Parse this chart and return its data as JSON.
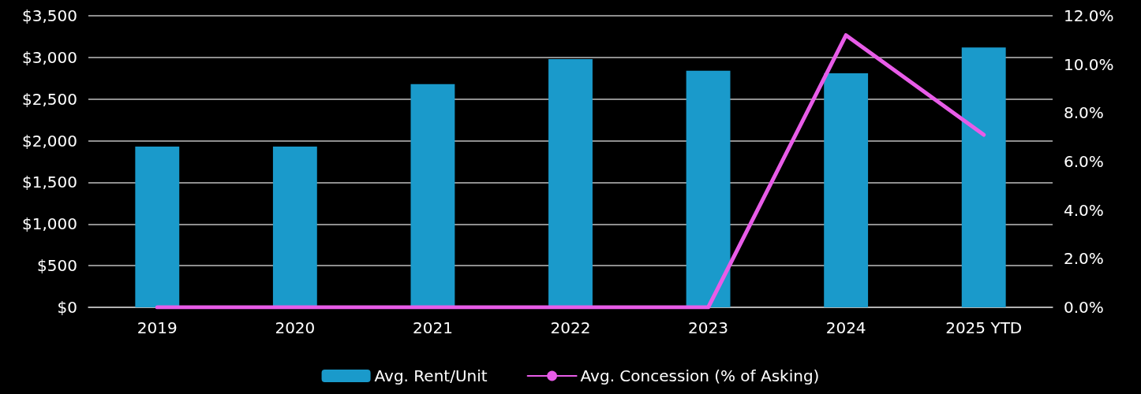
{
  "chart_data": {
    "type": "bar",
    "categories": [
      "2019",
      "2020",
      "2021",
      "2022",
      "2023",
      "2024",
      "2025 YTD"
    ],
    "series": [
      {
        "name": "Avg. Rent/Unit",
        "color": "#1a9acb",
        "values": [
          1930,
          1930,
          2680,
          2980,
          2840,
          2810,
          3120
        ]
      },
      {
        "name": "Avg. Concession (% of Asking)",
        "type": "line",
        "axis": "y2",
        "color": "#e85ce8",
        "values": [
          0,
          0,
          0,
          0,
          0,
          11.2,
          7.1
        ]
      }
    ],
    "ylim": [
      0,
      3500
    ],
    "yticks": [
      {
        "value": 0,
        "label": "$0"
      },
      {
        "value": 500,
        "label": "$500"
      },
      {
        "value": 1000,
        "label": "$1,000"
      },
      {
        "value": 1500,
        "label": "$1,500"
      },
      {
        "value": 2000,
        "label": "$2,000"
      },
      {
        "value": 2500,
        "label": "$2,500"
      },
      {
        "value": 3000,
        "label": "$3,000"
      },
      {
        "value": 3500,
        "label": "$3,500"
      }
    ],
    "y2lim": [
      0,
      12
    ],
    "y2ticks": [
      {
        "value": 0,
        "label": "0.0%"
      },
      {
        "value": 2,
        "label": "2.0%"
      },
      {
        "value": 4,
        "label": "4.0%"
      },
      {
        "value": 6,
        "label": "6.0%"
      },
      {
        "value": 8,
        "label": "8.0%"
      },
      {
        "value": 10,
        "label": "10.0%"
      },
      {
        "value": 12,
        "label": "12.0%"
      }
    ],
    "grid": "y",
    "legend": "bottom",
    "marker": "none",
    "line_style": "solid"
  }
}
